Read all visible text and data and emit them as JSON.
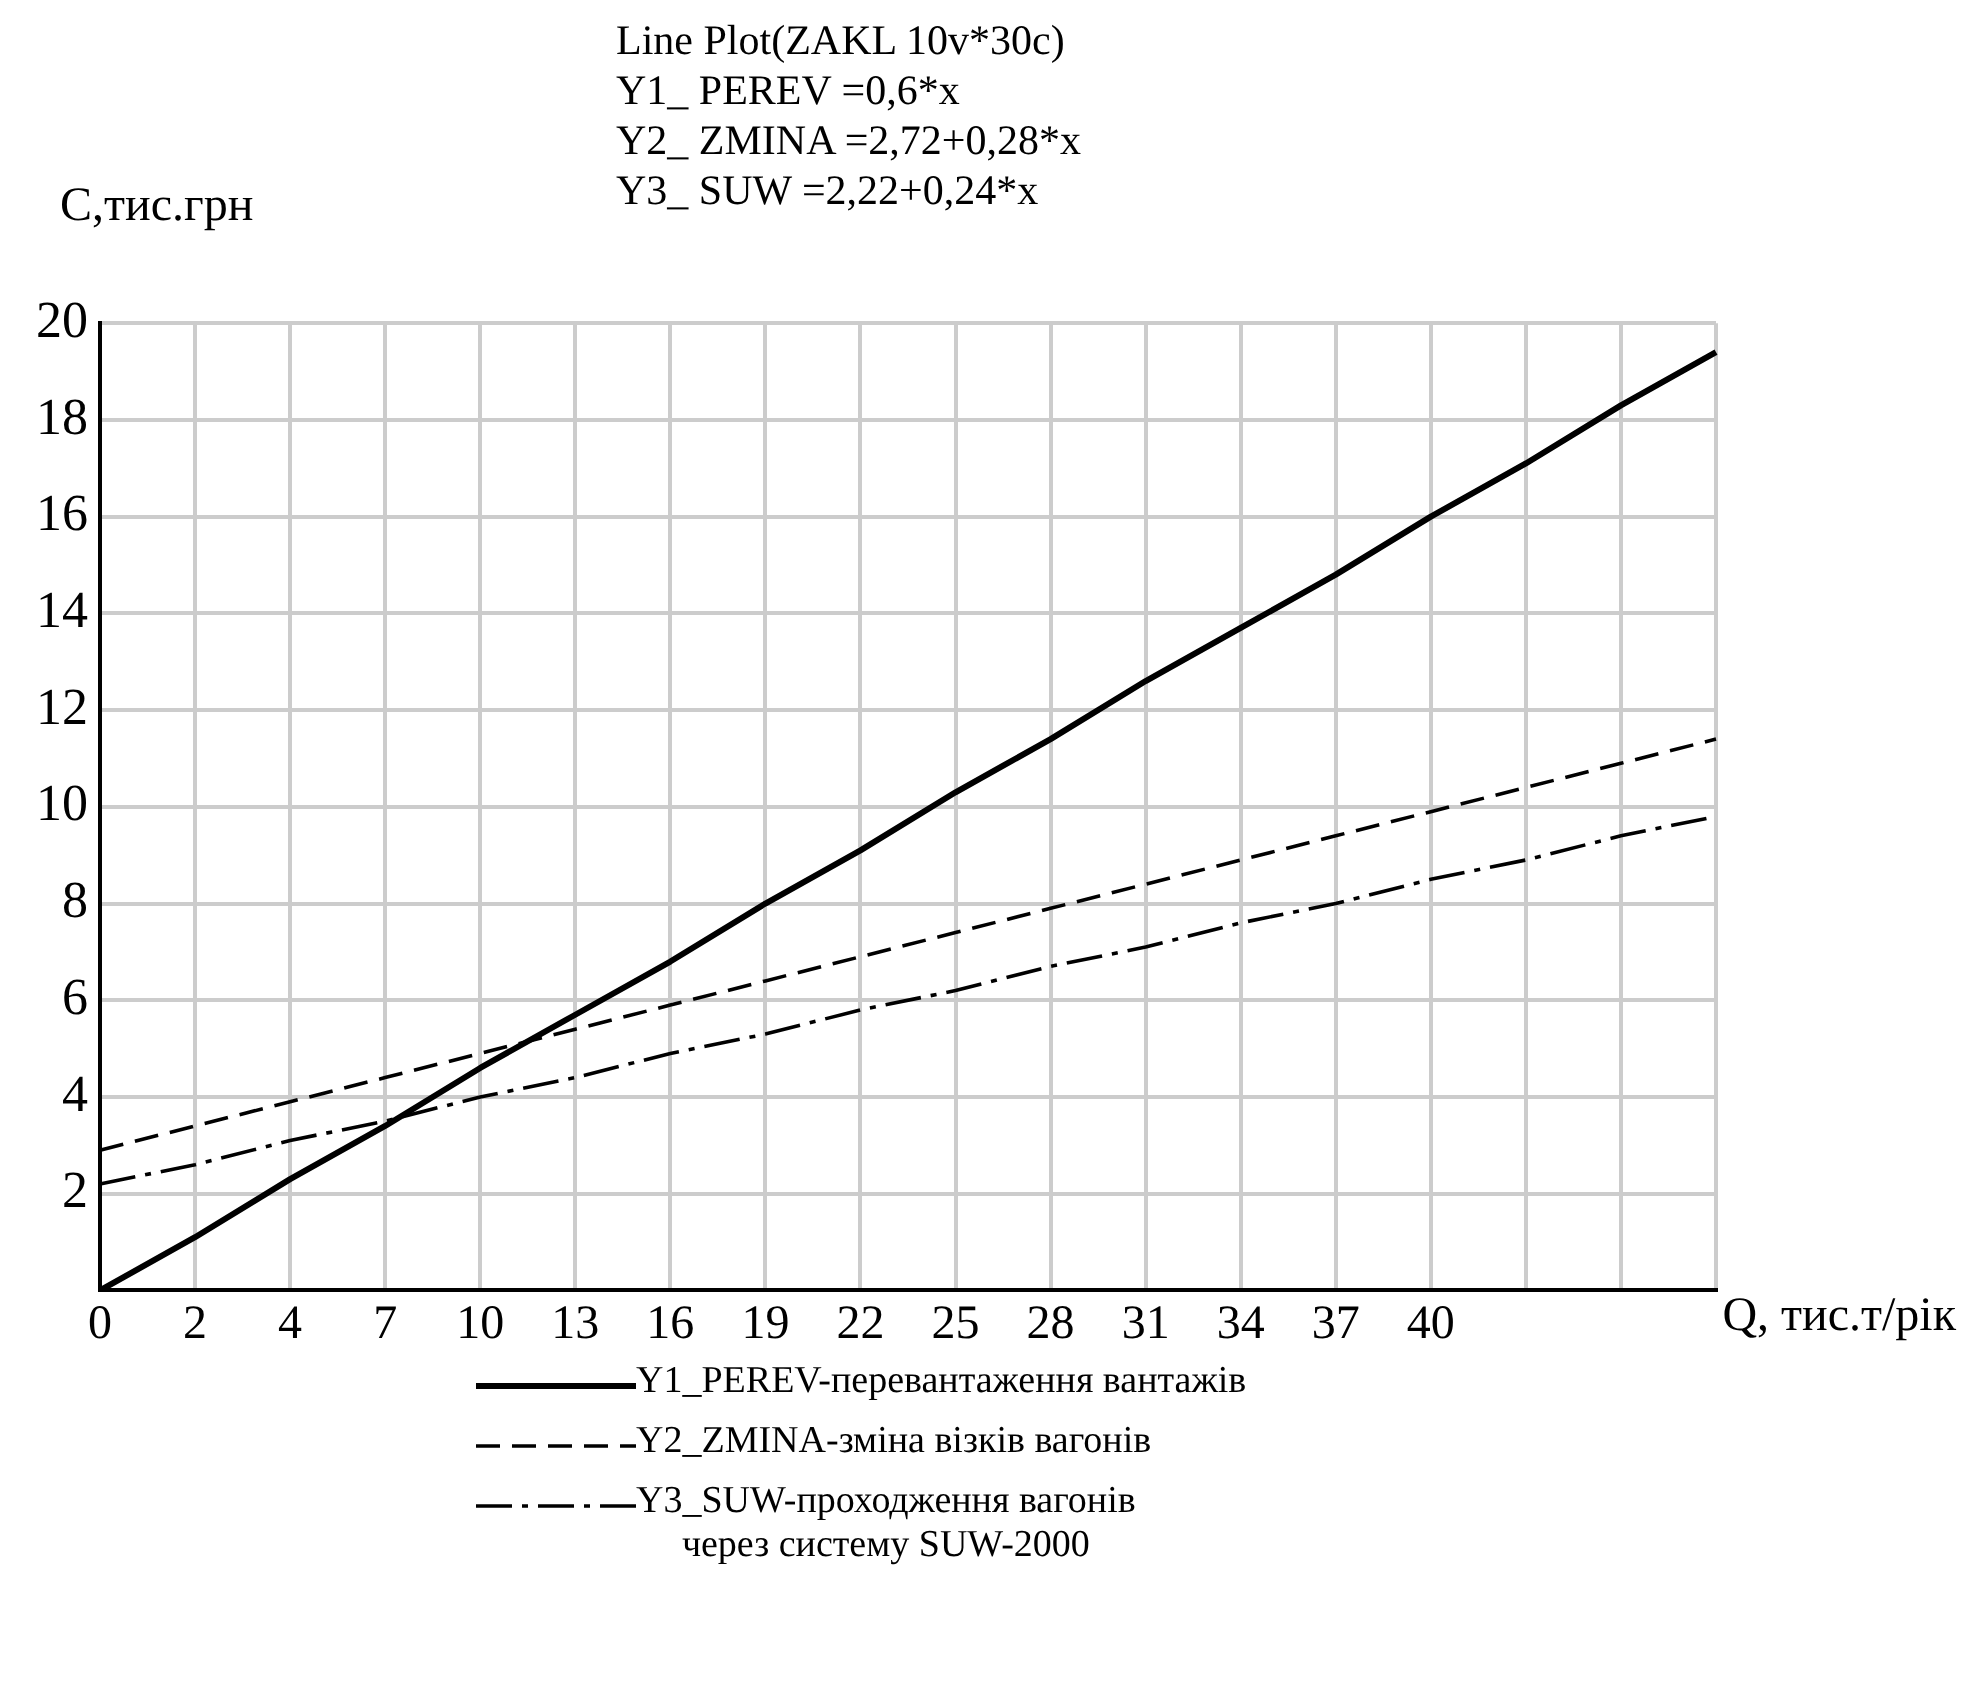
{
  "chart_data": {
    "type": "line",
    "title": "Line Plot(ZAKL 10v*30c)",
    "subtitle": "Y1_ PEREV =0,6*x\nY2_ ZMINA =2,72+0,28*x\nY3_ SUW =2,22+0,24*x",
    "ylabel": "C,тис.грн",
    "xlabel": "Q, тис.т/рік",
    "categories": [
      "0",
      "2",
      "4",
      "7",
      "10",
      "13",
      "16",
      "19",
      "22",
      "25",
      "28",
      "31",
      "34",
      "37",
      "40",
      null,
      null,
      null
    ],
    "ylim": [
      0,
      20
    ],
    "yticks": [
      {
        "value": 0,
        "label": null
      },
      2,
      4,
      6,
      8,
      10,
      12,
      14,
      16,
      18,
      20
    ],
    "grid": true,
    "legend": "bottom",
    "marker": "none",
    "series": [
      {
        "name": "Y1_PEREV-перевантаження вантажів",
        "color": "#000000",
        "line_style": "solid",
        "values": [
          0,
          1.1,
          2.3,
          3.4,
          4.6,
          5.7,
          6.8,
          8.0,
          9.1,
          10.3,
          11.4,
          12.6,
          13.7,
          14.8,
          16.0,
          17.1,
          18.3,
          19.4
        ]
      },
      {
        "name": "Y2_ZMINA-зміна візків вагонів",
        "color": "#000000",
        "line_style": "dashed",
        "values": [
          2.9,
          3.4,
          3.9,
          4.4,
          4.9,
          5.4,
          5.9,
          6.4,
          6.9,
          7.4,
          7.9,
          8.4,
          8.9,
          9.4,
          9.9,
          10.4,
          10.9,
          11.4
        ]
      },
      {
        "name": "Y3_SUW-проходження вагонів\nчерез систему SUW-2000",
        "color": "#000000",
        "line_style": "dashdot",
        "values": [
          2.2,
          2.6,
          3.1,
          3.5,
          4.0,
          4.4,
          4.9,
          5.3,
          5.8,
          6.2,
          6.7,
          7.1,
          7.6,
          8.0,
          8.5,
          8.9,
          9.4,
          9.8
        ]
      }
    ]
  }
}
